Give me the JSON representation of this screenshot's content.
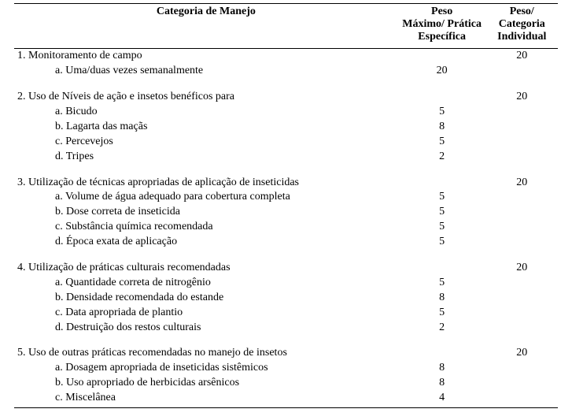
{
  "header": {
    "col_cat": "Categoria de Manejo",
    "col_peso_line1": "Peso",
    "col_peso_line2": "Máximo/ Prática",
    "col_peso_line3": "Específica",
    "col_catind_line1": "Peso/",
    "col_catind_line2": "Categoria",
    "col_catind_line3": "Individual"
  },
  "sections": [
    {
      "title": "1. Monitoramento de campo",
      "categoria_individual": "20",
      "items": [
        {
          "label": "a. Uma/duas vezes semanalmente",
          "peso": "20"
        }
      ]
    },
    {
      "title": "2. Uso de Níveis de ação e insetos benéficos para",
      "categoria_individual": "20",
      "items": [
        {
          "label": "a. Bicudo",
          "peso": "5"
        },
        {
          "label": "b. Lagarta das maçãs",
          "peso": "8"
        },
        {
          "label": "c. Percevejos",
          "peso": "5"
        },
        {
          "label": "d. Tripes",
          "peso": "2"
        }
      ]
    },
    {
      "title": "3. Utilização de técnicas apropriadas de aplicação de inseticidas",
      "categoria_individual": "20",
      "items": [
        {
          "label": "a. Volume de água adequado para cobertura completa",
          "peso": "5"
        },
        {
          "label": "b. Dose correta de inseticida",
          "peso": "5"
        },
        {
          "label": "c. Substância química recomendada",
          "peso": "5"
        },
        {
          "label": "d. Época exata de aplicação",
          "peso": "5"
        }
      ]
    },
    {
      "title": "4. Utilização de práticas culturais recomendadas",
      "categoria_individual": "20",
      "items": [
        {
          "label": "a. Quantidade correta de nitrogênio",
          "peso": "5"
        },
        {
          "label": "b. Densidade recomendada do estande",
          "peso": "8"
        },
        {
          "label": "c. Data apropriada de plantio",
          "peso": "5"
        },
        {
          "label": "d. Destruição dos restos culturais",
          "peso": "2"
        }
      ]
    },
    {
      "title": "5. Uso de outras práticas recomendadas no manejo de insetos",
      "categoria_individual": "20",
      "items": [
        {
          "label": "a. Dosagem apropriada de inseticidas sistêmicos",
          "peso": "8"
        },
        {
          "label": "b. Uso apropriado de herbicidas arsênicos",
          "peso": "8"
        },
        {
          "label": "c. Miscelânea",
          "peso": "4"
        }
      ]
    }
  ]
}
